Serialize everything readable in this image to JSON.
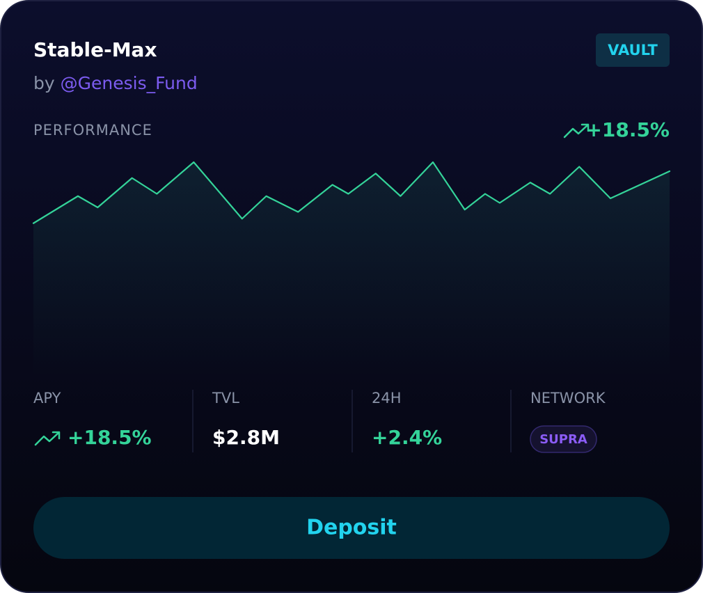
{
  "header": {
    "title": "Stable-Max",
    "by": "by",
    "handle": "@Genesis_Fund",
    "badge": "VAULT"
  },
  "performance": {
    "label": "PERFORMANCE",
    "value": "+18.5%"
  },
  "chart_data": {
    "type": "area",
    "x": [
      0,
      7,
      10.1,
      15.5,
      19.4,
      25.2,
      32.8,
      36.6,
      41.6,
      47,
      49.5,
      53.8,
      57.7,
      62.8,
      67.8,
      71,
      73.3,
      78.1,
      81.2,
      85.8,
      90.7,
      100
    ],
    "values": [
      69,
      81,
      76,
      89,
      82,
      96,
      71,
      81,
      74,
      86,
      82,
      91,
      81,
      96,
      75,
      82,
      78,
      87,
      82,
      94,
      80,
      92
    ],
    "xlim": [
      0,
      100
    ],
    "ylim": [
      0,
      100
    ],
    "color": "#34d399"
  },
  "stats": [
    {
      "label": "APY",
      "value": "+18.5%"
    },
    {
      "label": "TVL",
      "value": "$2.8M"
    },
    {
      "label": "24H",
      "value": "+2.4%"
    },
    {
      "label": "NETWORK",
      "value": "SUPRA"
    }
  ],
  "button": "Deposit"
}
